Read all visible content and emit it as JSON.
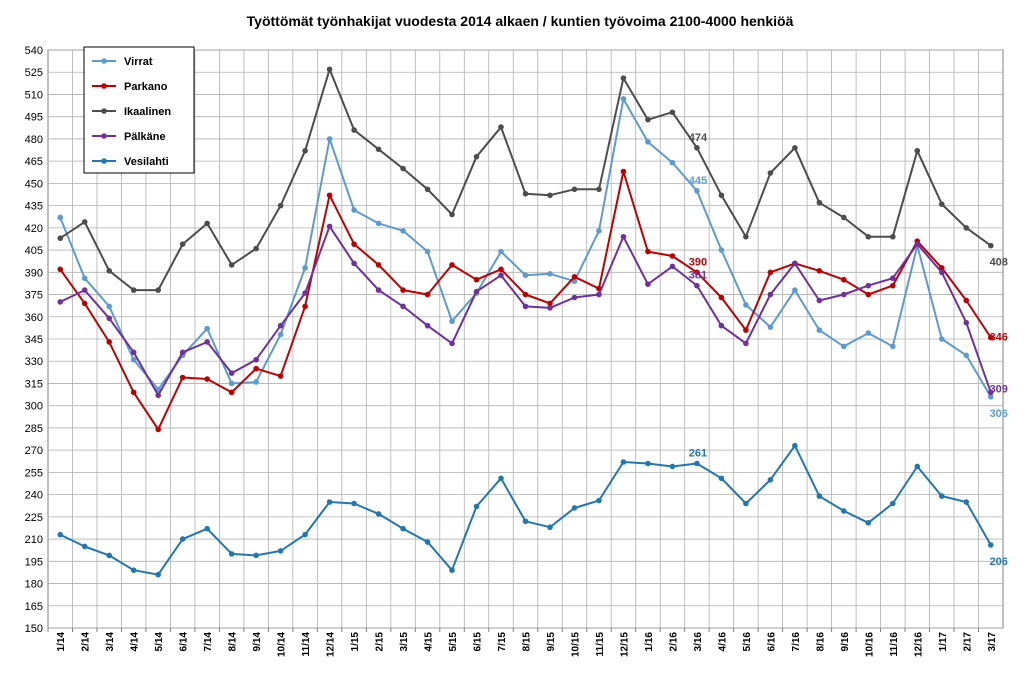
{
  "chart_data": {
    "type": "line",
    "title": "Työttömät työnhakijat vuodesta 2014 alkaen / kuntien työvoima 2100-4000 henkiöä",
    "xlabel": "",
    "ylabel": "",
    "ylim": [
      150,
      540
    ],
    "yticks": [
      150,
      165,
      180,
      195,
      210,
      225,
      240,
      255,
      270,
      285,
      300,
      315,
      330,
      345,
      360,
      375,
      390,
      405,
      420,
      435,
      450,
      465,
      480,
      495,
      510,
      525,
      540
    ],
    "grid": true,
    "legend_position": "top-left",
    "categories": [
      "1/14",
      "2/14",
      "3/14",
      "4/14",
      "5/14",
      "6/14",
      "7/14",
      "8/14",
      "9/14",
      "10/14",
      "11/14",
      "12/14",
      "1/15",
      "2/15",
      "3/15",
      "4/15",
      "5/15",
      "6/15",
      "7/15",
      "8/15",
      "9/15",
      "10/15",
      "11/15",
      "12/15",
      "1/16",
      "2/16",
      "3/16",
      "4/16",
      "5/16",
      "6/16",
      "7/16",
      "8/16",
      "9/16",
      "10/16",
      "11/16",
      "12/16",
      "1/17",
      "2/17",
      "3/17"
    ],
    "series": [
      {
        "name": "Virrat",
        "color": "#5b9bd5",
        "values": [
          427,
          386,
          367,
          331,
          311,
          334,
          352,
          315,
          316,
          348,
          393,
          480,
          432,
          423,
          418,
          404,
          357,
          376,
          404,
          388,
          389,
          384,
          418,
          507,
          478,
          464,
          445,
          405,
          368,
          353,
          378,
          351,
          340,
          349,
          340,
          408,
          345,
          334,
          306
        ],
        "end_label": "306"
      },
      {
        "name": "Parkano",
        "color": "#c00000",
        "values": [
          392,
          369,
          343,
          309,
          284,
          319,
          318,
          309,
          325,
          320,
          367,
          442,
          409,
          395,
          378,
          375,
          395,
          385,
          392,
          375,
          369,
          387,
          379,
          458,
          404,
          401,
          390,
          373,
          351,
          390,
          396,
          391,
          385,
          375,
          381,
          411,
          393,
          371,
          346
        ],
        "end_label": "346"
      },
      {
        "name": "Ikaalinen",
        "color": "#4d4d4d",
        "values": [
          413,
          424,
          391,
          378,
          378,
          409,
          423,
          395,
          406,
          435,
          472,
          527,
          486,
          473,
          460,
          446,
          429,
          468,
          488,
          443,
          442,
          446,
          446,
          521,
          493,
          498,
          474,
          442,
          414,
          457,
          474,
          437,
          427,
          414,
          414,
          472,
          436,
          420,
          408
        ],
        "end_label": "408"
      },
      {
        "name": "Pälkäne",
        "color": "#7030a0",
        "values": [
          370,
          378,
          359,
          336,
          307,
          336,
          343,
          322,
          331,
          354,
          376,
          421,
          396,
          378,
          367,
          354,
          342,
          377,
          388,
          367,
          366,
          373,
          375,
          414,
          382,
          394,
          381,
          354,
          342,
          375,
          396,
          371,
          375,
          381,
          386,
          409,
          390,
          356,
          309
        ],
        "end_label": "309"
      },
      {
        "name": "Vesilahti",
        "color": "#1f78b4",
        "values": [
          213,
          205,
          199,
          189,
          186,
          210,
          217,
          200,
          199,
          202,
          213,
          235,
          234,
          227,
          217,
          208,
          189,
          232,
          251,
          222,
          218,
          231,
          236,
          262,
          261,
          259,
          261,
          251,
          234,
          250,
          273,
          239,
          229,
          221,
          234,
          259,
          239,
          235,
          206
        ],
        "end_label": "206"
      }
    ],
    "annotations": [
      {
        "text": "474",
        "series": "Ikaalinen",
        "category": "3/16",
        "value": 474
      },
      {
        "text": "445",
        "series": "Virrat",
        "category": "3/16",
        "value": 445
      },
      {
        "text": "390",
        "series": "Parkano",
        "category": "3/16",
        "value": 390
      },
      {
        "text": "381",
        "series": "Pälkäne",
        "category": "3/16",
        "value": 381
      },
      {
        "text": "261",
        "series": "Vesilahti",
        "category": "3/16",
        "value": 261
      }
    ]
  }
}
